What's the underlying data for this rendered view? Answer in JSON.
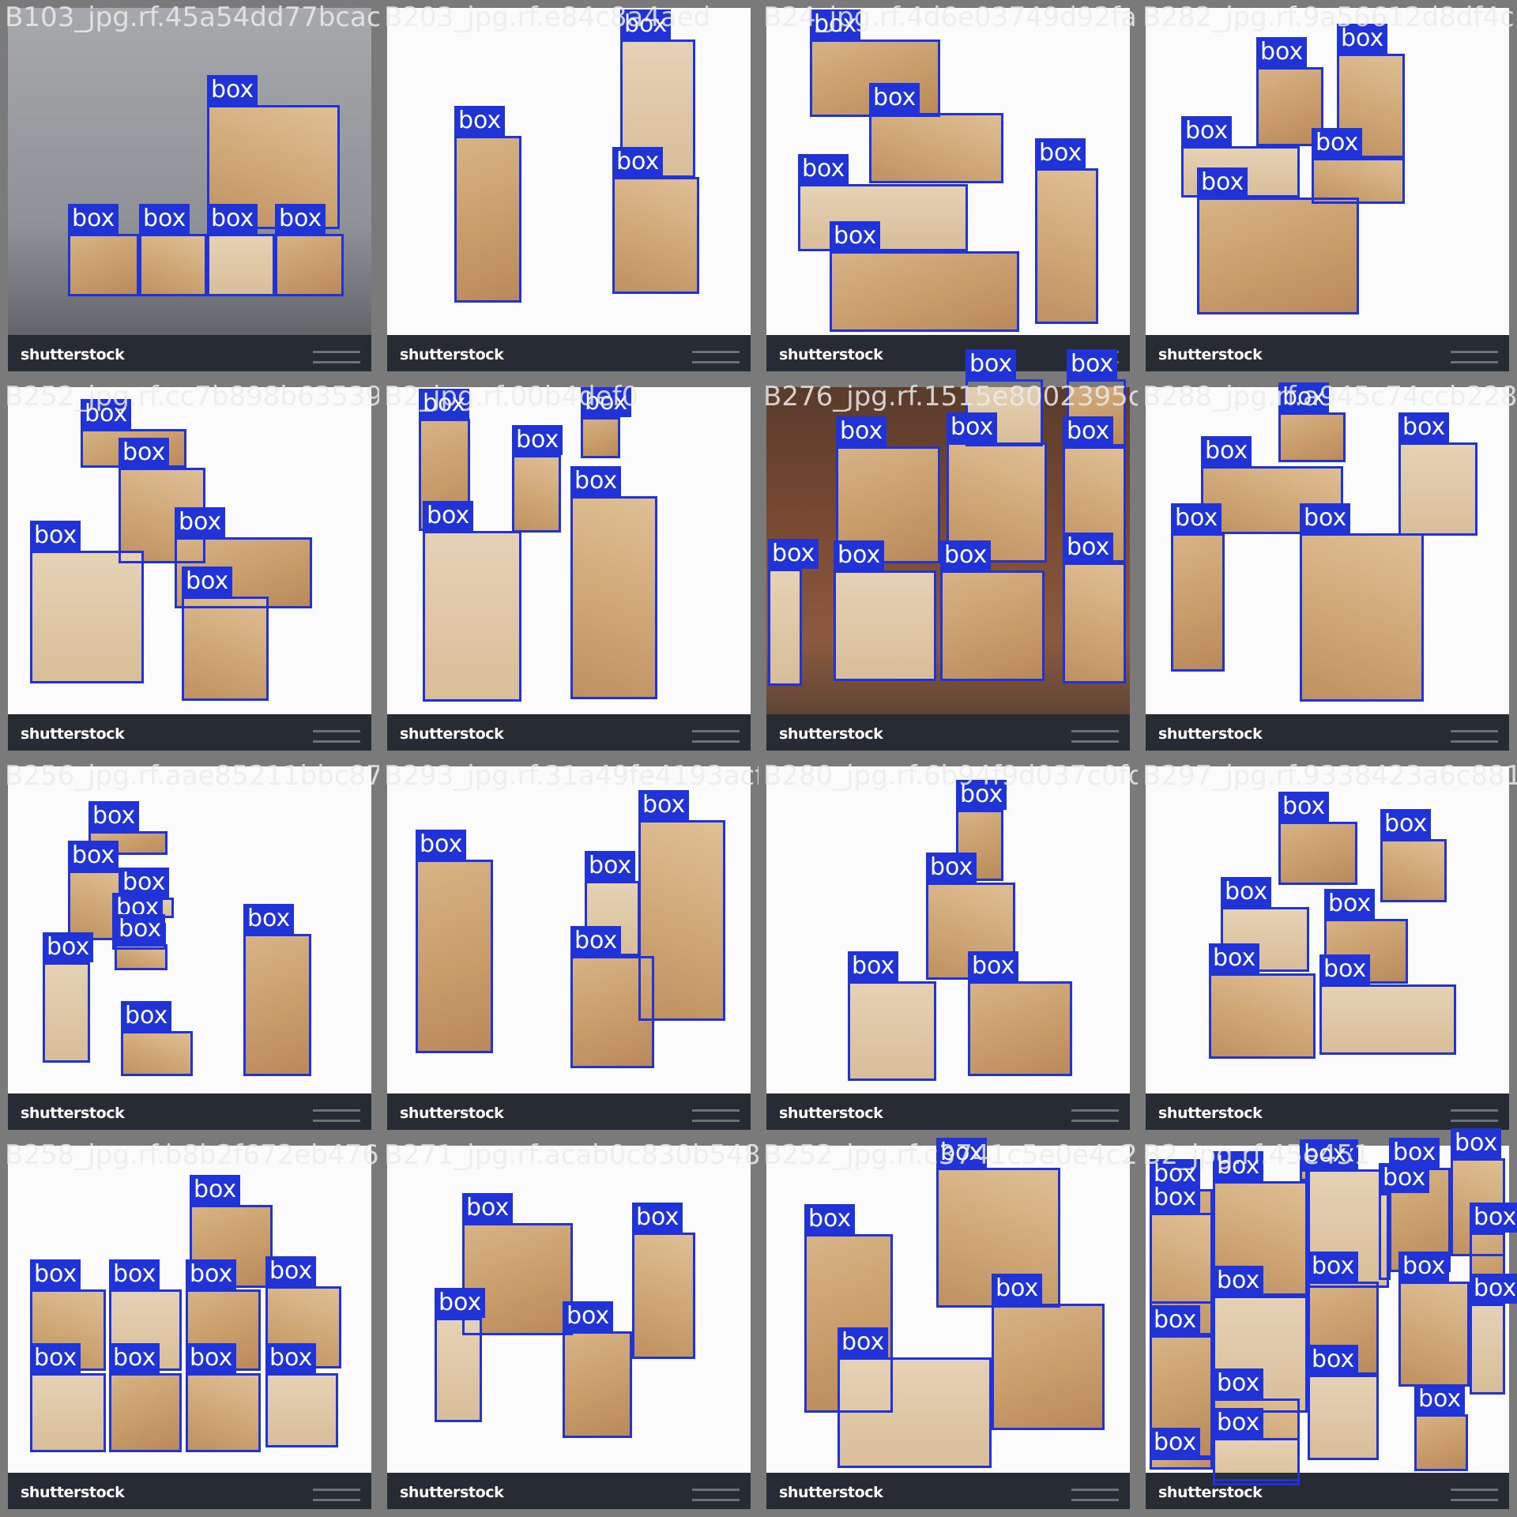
{
  "detection_label": "box",
  "box_color": "#1f33d6",
  "watermark_brand": "shutterstock",
  "tiles": [
    {
      "filename": "B103_jpg.rf.45a54dd77bcac",
      "bg": "gray",
      "n": 6
    },
    {
      "filename": "B203_jpg.rf.e84c8a4aed",
      "bg": "light",
      "n": 3
    },
    {
      "filename": "B24_jpg.rf.4d6e03749d92fa",
      "bg": "light",
      "n": 5
    },
    {
      "filename": "B282_jpg.rf.9a56612d8df4c15",
      "bg": "light",
      "n": 6
    },
    {
      "filename": "B252_jpg.rf.cc7b898b635391",
      "bg": "light",
      "n": 5
    },
    {
      "filename": "B2_jpg.rf.00b4def0",
      "bg": "light",
      "n": 6
    },
    {
      "filename": "B276_jpg.rf.1515e8002395c2b",
      "bg": "warehouse",
      "n": 10
    },
    {
      "filename": "B288_jpg.rf.a945c74ccb228",
      "bg": "light",
      "n": 5
    },
    {
      "filename": "B256_jpg.rf.aae85211bbc87",
      "bg": "light",
      "n": 8
    },
    {
      "filename": "B293_jpg.rf.31a49fe4193acff17",
      "bg": "light",
      "n": 4
    },
    {
      "filename": "B280_jpg.rf.6b94f9d037c0fda",
      "bg": "light",
      "n": 4
    },
    {
      "filename": "B297_jpg.rf.9338423a6c8817adf",
      "bg": "light",
      "n": 6
    },
    {
      "filename": "B258_jpg.rf.b8b2f672eb476",
      "bg": "light",
      "n": 9
    },
    {
      "filename": "B271_jpg.rf.acab0c830b548417",
      "bg": "light",
      "n": 4
    },
    {
      "filename": "B252_jpg.rf.c3741c5e0e4c2f0291",
      "bg": "light",
      "n": 4
    },
    {
      "filename": "B2_jpg.rf.45e451",
      "bg": "light",
      "n": 19
    }
  ]
}
